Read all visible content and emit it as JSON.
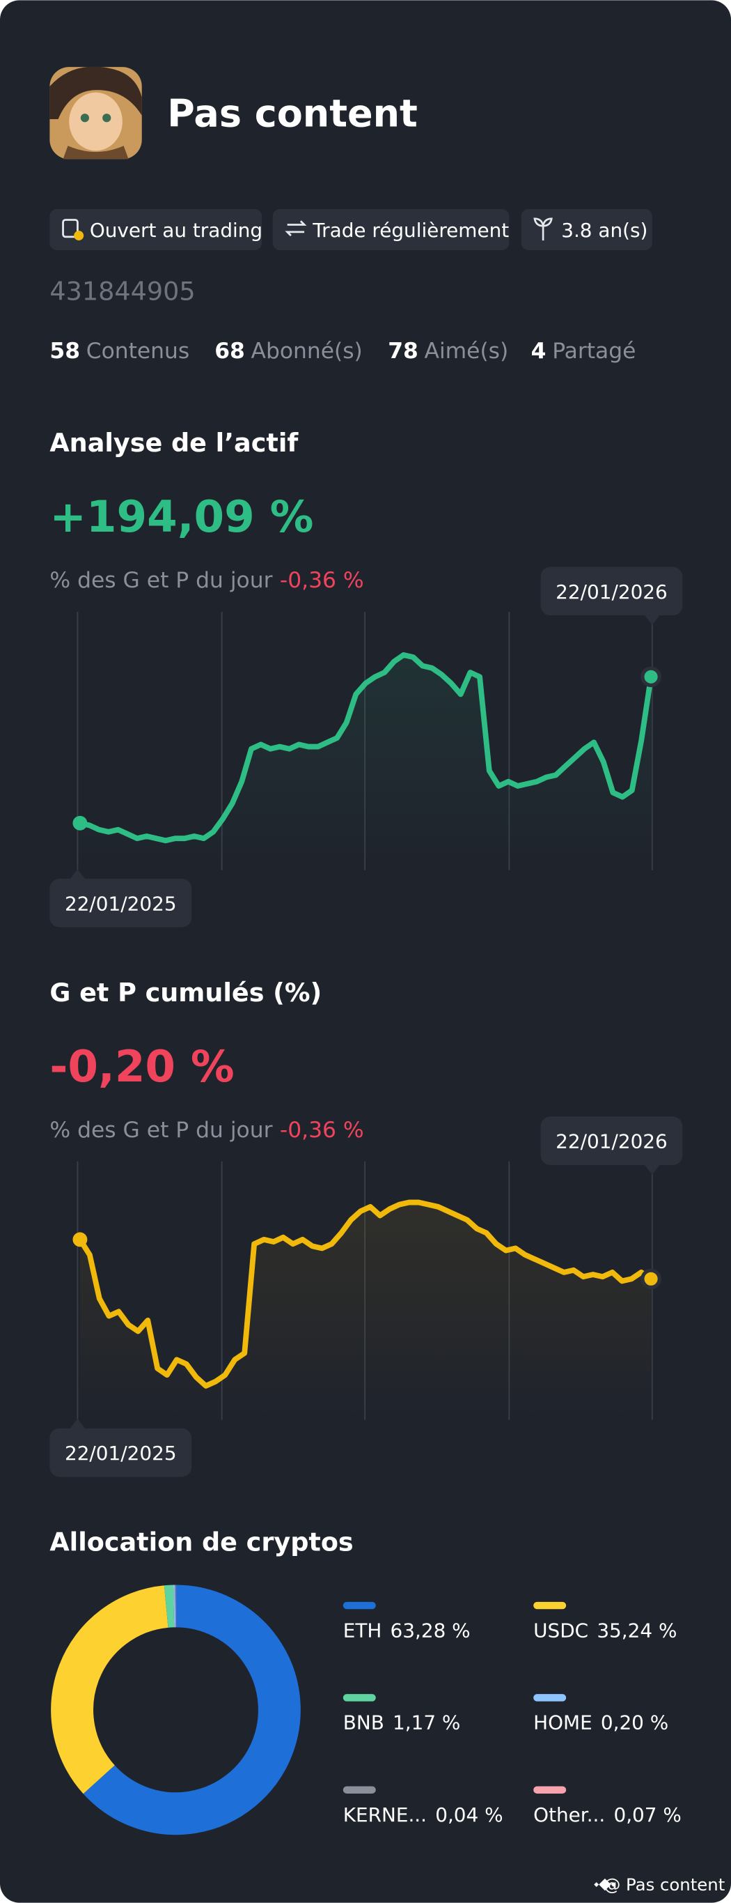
{
  "profile": {
    "name": "Pas content",
    "badges": [
      "Ouvert au trading",
      "Trade régulièrement",
      "3.8 an(s)"
    ],
    "id": "431844905",
    "stats": [
      {
        "value": 58,
        "label": "Contenus"
      },
      {
        "value": 68,
        "label": "Abonné(s)"
      },
      {
        "value": 78,
        "label": "Aimé(s)"
      },
      {
        "value": 4,
        "label": "Partagé"
      }
    ]
  },
  "chart_data": [
    {
      "type": "line",
      "title": "Analyse de l’actif",
      "headline": "+194,09 %",
      "subtitle": "% des G et P du jour",
      "daily": "-0,36 %",
      "start_label": "22/01/2025",
      "end_label": "22/01/2026",
      "color": "#2dbd85",
      "ylim": [
        0,
        100
      ],
      "values": [
        16,
        15,
        13,
        12,
        13,
        11,
        9,
        10,
        9,
        8,
        9,
        9,
        10,
        9,
        12,
        18,
        25,
        35,
        50,
        52,
        50,
        51,
        50,
        52,
        51,
        51,
        53,
        55,
        62,
        75,
        80,
        83,
        85,
        90,
        93,
        92,
        88,
        87,
        84,
        80,
        75,
        85,
        83,
        40,
        33,
        35,
        33,
        34,
        35,
        37,
        38,
        42,
        46,
        50,
        53,
        44,
        30,
        28,
        31,
        54,
        83
      ]
    },
    {
      "type": "line",
      "title": "G et P cumulés (%)",
      "headline": "-0,20 %",
      "subtitle": "% des G et P du jour",
      "daily": "-0,36 %",
      "start_label": "22/01/2025",
      "end_label": "22/01/2026",
      "color": "#f0b90b",
      "ylim": [
        0,
        100
      ],
      "values": [
        77,
        70,
        50,
        42,
        44,
        38,
        35,
        40,
        18,
        15,
        22,
        20,
        14,
        10,
        12,
        15,
        22,
        25,
        75,
        77,
        76,
        78,
        75,
        77,
        74,
        73,
        75,
        80,
        86,
        90,
        92,
        88,
        91,
        93,
        94,
        94,
        93,
        92,
        90,
        88,
        86,
        82,
        80,
        75,
        72,
        73,
        70,
        68,
        66,
        64,
        62,
        63,
        60,
        61,
        60,
        62,
        58,
        59,
        62,
        59
      ]
    },
    {
      "type": "pie",
      "title": "Allocation de cryptos",
      "categories": [
        "ETH",
        "USDC",
        "BNB",
        "HOME",
        "KERNE...",
        "Other..."
      ],
      "values": [
        63.28,
        35.24,
        1.17,
        0.2,
        0.04,
        0.07
      ],
      "value_labels": [
        "63,28 %",
        "35,24 %",
        "1,17 %",
        "0,20 %",
        "0,04 %",
        "0,07 %"
      ],
      "colors": [
        "#1f6fd8",
        "#fdd130",
        "#5fd3a0",
        "#8ec5ff",
        "#8a8f99",
        "#f6a3ad"
      ]
    }
  ],
  "footer": "@ Pas content"
}
